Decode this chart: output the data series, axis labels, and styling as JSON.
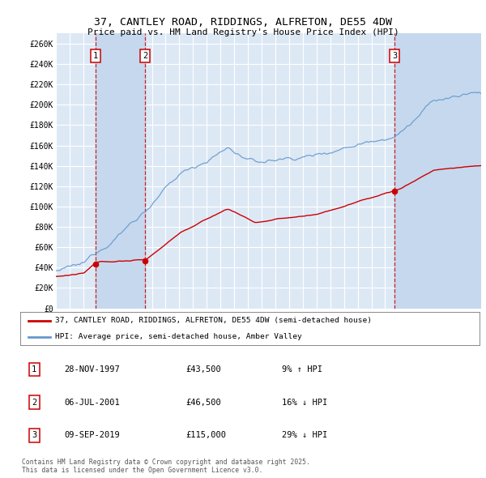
{
  "title_line1": "37, CANTLEY ROAD, RIDDINGS, ALFRETON, DE55 4DW",
  "title_line2": "Price paid vs. HM Land Registry's House Price Index (HPI)",
  "bg_color": "#ffffff",
  "plot_bg_color": "#dde8f5",
  "grid_color": "#ffffff",
  "red_line_color": "#cc0000",
  "blue_line_color": "#6699cc",
  "marker_color": "#cc0000",
  "dashed_color": "#cc0000",
  "shade_color": "#c5d8ee",
  "ylim": [
    0,
    270000
  ],
  "yticks": [
    0,
    20000,
    40000,
    60000,
    80000,
    100000,
    120000,
    140000,
    160000,
    180000,
    200000,
    220000,
    240000,
    260000
  ],
  "ytick_labels": [
    "£0",
    "£20K",
    "£40K",
    "£60K",
    "£80K",
    "£100K",
    "£120K",
    "£140K",
    "£160K",
    "£180K",
    "£200K",
    "£220K",
    "£240K",
    "£260K"
  ],
  "xmin": 1995.0,
  "xmax": 2026.0,
  "transactions": [
    {
      "date_num": 1997.91,
      "price": 43500,
      "label": "1"
    },
    {
      "date_num": 2001.52,
      "price": 46500,
      "label": "2"
    },
    {
      "date_num": 2019.69,
      "price": 115000,
      "label": "3"
    }
  ],
  "legend_entries": [
    "37, CANTLEY ROAD, RIDDINGS, ALFRETON, DE55 4DW (semi-detached house)",
    "HPI: Average price, semi-detached house, Amber Valley"
  ],
  "table_rows": [
    {
      "num": "1",
      "date": "28-NOV-1997",
      "price": "£43,500",
      "change": "9% ↑ HPI"
    },
    {
      "num": "2",
      "date": "06-JUL-2001",
      "price": "£46,500",
      "change": "16% ↓ HPI"
    },
    {
      "num": "3",
      "date": "09-SEP-2019",
      "price": "£115,000",
      "change": "29% ↓ HPI"
    }
  ],
  "footnote": "Contains HM Land Registry data © Crown copyright and database right 2025.\nThis data is licensed under the Open Government Licence v3.0."
}
